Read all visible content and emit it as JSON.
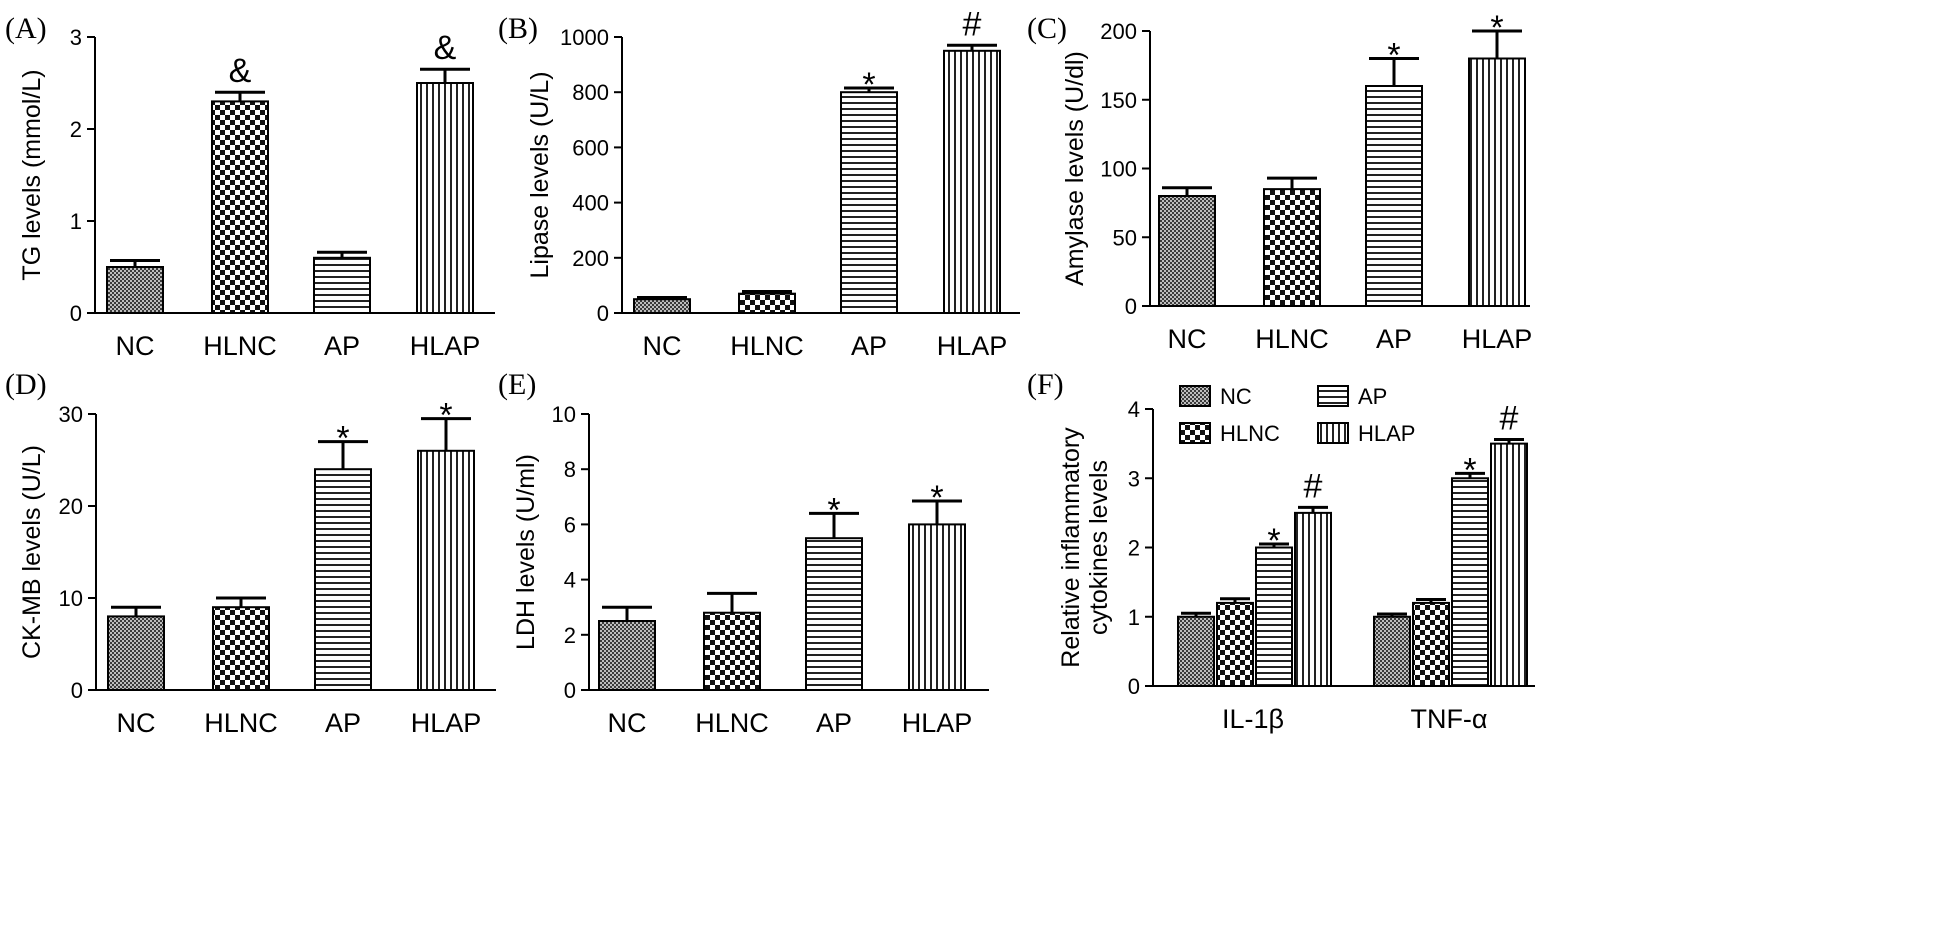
{
  "panels": [
    {
      "panel_label": "(A)",
      "chart_data": {
        "type": "bar",
        "title": "",
        "xlabel": "",
        "ylabel": "TG levels (mmol/L)",
        "categories": [
          "NC",
          "HLNC",
          "AP",
          "HLAP"
        ],
        "patterns": [
          "dense-check",
          "check",
          "hstripe",
          "vstripe"
        ],
        "values": [
          0.5,
          2.3,
          0.6,
          2.5
        ],
        "errors": [
          0.07,
          0.1,
          0.06,
          0.15
        ],
        "annotations": [
          "",
          "&",
          "",
          "&"
        ],
        "ylim": [
          0,
          3
        ],
        "yticks": [
          "0",
          "1",
          "2",
          "3"
        ]
      }
    },
    {
      "panel_label": "(B)",
      "chart_data": {
        "type": "bar",
        "title": "",
        "xlabel": "",
        "ylabel": "Lipase levels (U/L)",
        "categories": [
          "NC",
          "HLNC",
          "AP",
          "HLAP"
        ],
        "patterns": [
          "dense-check",
          "check",
          "hstripe",
          "vstripe"
        ],
        "values": [
          50,
          70,
          800,
          950
        ],
        "errors": [
          6,
          8,
          15,
          20
        ],
        "annotations": [
          "",
          "",
          "*",
          "#"
        ],
        "ylim": [
          0,
          1000
        ],
        "yticks": [
          "0",
          "200",
          "400",
          "600",
          "800",
          "1000"
        ]
      }
    },
    {
      "panel_label": "(C)",
      "chart_data": {
        "type": "bar",
        "title": "",
        "xlabel": "",
        "ylabel": "Amylase levels (U/dl)",
        "categories": [
          "NC",
          "HLNC",
          "AP",
          "HLAP"
        ],
        "patterns": [
          "dense-check",
          "check",
          "hstripe",
          "vstripe"
        ],
        "values": [
          80,
          85,
          160,
          180
        ],
        "errors": [
          6,
          8,
          20,
          20
        ],
        "annotations": [
          "",
          "",
          "*",
          "*"
        ],
        "ylim": [
          0,
          200
        ],
        "yticks": [
          "0",
          "50",
          "100",
          "150",
          "200"
        ]
      }
    },
    {
      "panel_label": "(D)",
      "chart_data": {
        "type": "bar",
        "title": "",
        "xlabel": "",
        "ylabel": "CK-MB levels (U/L)",
        "categories": [
          "NC",
          "HLNC",
          "AP",
          "HLAP"
        ],
        "patterns": [
          "dense-check",
          "check",
          "hstripe",
          "vstripe"
        ],
        "values": [
          8,
          9,
          24,
          26
        ],
        "errors": [
          1,
          1,
          3,
          3.5
        ],
        "annotations": [
          "",
          "",
          "*",
          "*"
        ],
        "ylim": [
          0,
          30
        ],
        "yticks": [
          "0",
          "10",
          "20",
          "30"
        ]
      }
    },
    {
      "panel_label": "(E)",
      "chart_data": {
        "type": "bar",
        "title": "",
        "xlabel": "",
        "ylabel": "LDH levels (U/ml)",
        "categories": [
          "NC",
          "HLNC",
          "AP",
          "HLAP"
        ],
        "patterns": [
          "dense-check",
          "check",
          "hstripe",
          "vstripe"
        ],
        "values": [
          2.5,
          2.8,
          5.5,
          6.0
        ],
        "errors": [
          0.5,
          0.7,
          0.9,
          0.85
        ],
        "annotations": [
          "",
          "",
          "*",
          "*"
        ],
        "ylim": [
          0,
          10
        ],
        "yticks": [
          "0",
          "2",
          "4",
          "6",
          "8",
          "10"
        ]
      }
    },
    {
      "panel_label": "(F)",
      "chart_data": {
        "type": "bar",
        "title": "",
        "xlabel": "",
        "ylabel": [
          "Relative inflammatory",
          "cytokines  levels"
        ],
        "categories": [
          "IL-1β",
          "TNF-α"
        ],
        "series": [
          {
            "name": "NC",
            "pattern": "dense-check",
            "values": [
              1.0,
              1.0
            ],
            "errors": [
              0.05,
              0.04
            ],
            "annotations": [
              "",
              ""
            ]
          },
          {
            "name": "HLNC",
            "pattern": "check",
            "values": [
              1.2,
              1.2
            ],
            "errors": [
              0.06,
              0.05
            ],
            "annotations": [
              "",
              ""
            ]
          },
          {
            "name": "AP",
            "pattern": "hstripe",
            "values": [
              2.0,
              3.0
            ],
            "errors": [
              0.05,
              0.07
            ],
            "annotations": [
              "*",
              "*"
            ]
          },
          {
            "name": "HLAP",
            "pattern": "vstripe",
            "values": [
              2.5,
              3.5
            ],
            "errors": [
              0.08,
              0.06
            ],
            "annotations": [
              "#",
              "#"
            ]
          }
        ],
        "legend_position": "top-left",
        "ylim": [
          0,
          4
        ],
        "yticks": [
          "0",
          "1",
          "2",
          "3",
          "4"
        ]
      }
    }
  ]
}
